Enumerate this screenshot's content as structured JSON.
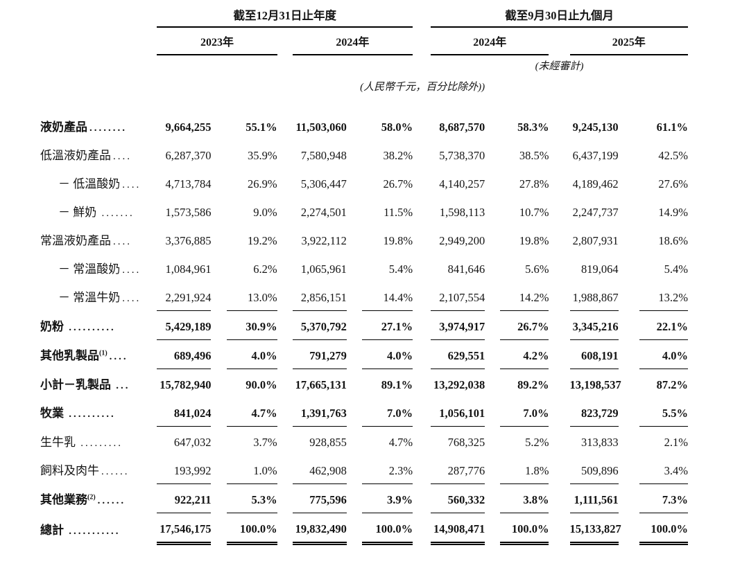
{
  "table": {
    "col_groups": [
      {
        "title": "截至12月31日止年度",
        "years": [
          "2023年",
          "2024年"
        ]
      },
      {
        "title": "截至9月30日止九個月",
        "years": [
          "2024年",
          "2025年"
        ]
      }
    ],
    "unaudited_note": "(未經審計)",
    "units_note": "(人民幣千元，百分比除外))",
    "rows": [
      {
        "name": "液奶產品",
        "sup": "",
        "dots": "........",
        "bold": true,
        "indent": false,
        "rule": "none",
        "values": [
          "9,664,255",
          "55.1%",
          "11,503,060",
          "58.0%",
          "8,687,570",
          "58.3%",
          "9,245,130",
          "61.1%"
        ]
      },
      {
        "name": "低溫液奶產品",
        "sup": "",
        "dots": "....",
        "bold": false,
        "indent": false,
        "rule": "none",
        "values": [
          "6,287,370",
          "35.9%",
          "7,580,948",
          "38.2%",
          "5,738,370",
          "38.5%",
          "6,437,199",
          "42.5%"
        ]
      },
      {
        "name": "－ 低溫酸奶",
        "sup": "",
        "dots": "....",
        "bold": false,
        "indent": true,
        "rule": "none",
        "values": [
          "4,713,784",
          "26.9%",
          "5,306,447",
          "26.7%",
          "4,140,257",
          "27.8%",
          "4,189,462",
          "27.6%"
        ]
      },
      {
        "name": "－ 鮮奶 ",
        "sup": "",
        "dots": ".......",
        "bold": false,
        "indent": true,
        "rule": "none",
        "values": [
          "1,573,586",
          "9.0%",
          "2,274,501",
          "11.5%",
          "1,598,113",
          "10.7%",
          "2,247,737",
          "14.9%"
        ]
      },
      {
        "name": "常溫液奶產品",
        "sup": "",
        "dots": "....",
        "bold": false,
        "indent": false,
        "rule": "none",
        "values": [
          "3,376,885",
          "19.2%",
          "3,922,112",
          "19.8%",
          "2,949,200",
          "19.8%",
          "2,807,931",
          "18.6%"
        ]
      },
      {
        "name": "－ 常溫酸奶",
        "sup": "",
        "dots": "....",
        "bold": false,
        "indent": true,
        "rule": "none",
        "values": [
          "1,084,961",
          "6.2%",
          "1,065,961",
          "5.4%",
          "841,646",
          "5.6%",
          "819,064",
          "5.4%"
        ]
      },
      {
        "name": "－ 常溫牛奶",
        "sup": "",
        "dots": "....",
        "bold": false,
        "indent": true,
        "rule": "single",
        "values": [
          "2,291,924",
          "13.0%",
          "2,856,151",
          "14.4%",
          "2,107,554",
          "14.2%",
          "1,988,867",
          "13.2%"
        ]
      },
      {
        "name": "奶粉 ",
        "sup": "",
        "dots": "..........",
        "bold": true,
        "indent": false,
        "rule": "single",
        "values": [
          "5,429,189",
          "30.9%",
          "5,370,792",
          "27.1%",
          "3,974,917",
          "26.7%",
          "3,345,216",
          "22.1%"
        ]
      },
      {
        "name": "其他乳製品",
        "sup": "(1)",
        "dots": "....",
        "bold": true,
        "indent": false,
        "rule": "single",
        "values": [
          "689,496",
          "4.0%",
          "791,279",
          "4.0%",
          "629,551",
          "4.2%",
          "608,191",
          "4.0%"
        ]
      },
      {
        "name": "小計－乳製品 ",
        "sup": "",
        "dots": "...",
        "bold": true,
        "indent": false,
        "rule": "none",
        "values": [
          "15,782,940",
          "90.0%",
          "17,665,131",
          "89.1%",
          "13,292,038",
          "89.2%",
          "13,198,537",
          "87.2%"
        ]
      },
      {
        "name": "牧業 ",
        "sup": "",
        "dots": "..........",
        "bold": true,
        "indent": false,
        "rule": "single",
        "values": [
          "841,024",
          "4.7%",
          "1,391,763",
          "7.0%",
          "1,056,101",
          "7.0%",
          "823,729",
          "5.5%"
        ]
      },
      {
        "name": "生牛乳 ",
        "sup": "",
        "dots": ".........",
        "bold": false,
        "indent": false,
        "rule": "none",
        "values": [
          "647,032",
          "3.7%",
          "928,855",
          "4.7%",
          "768,325",
          "5.2%",
          "313,833",
          "2.1%"
        ]
      },
      {
        "name": "飼料及肉牛",
        "sup": "",
        "dots": "......",
        "bold": false,
        "indent": false,
        "rule": "single",
        "values": [
          "193,992",
          "1.0%",
          "462,908",
          "2.3%",
          "287,776",
          "1.8%",
          "509,896",
          "3.4%"
        ]
      },
      {
        "name": "其他業務",
        "sup": "(2)",
        "dots": "......",
        "bold": true,
        "indent": false,
        "rule": "single",
        "values": [
          "922,211",
          "5.3%",
          "775,596",
          "3.9%",
          "560,332",
          "3.8%",
          "1,111,561",
          "7.3%"
        ]
      },
      {
        "name": "總計 ",
        "sup": "",
        "dots": "...........",
        "bold": true,
        "indent": false,
        "rule": "double",
        "values": [
          "17,546,175",
          "100.0%",
          "19,832,490",
          "100.0%",
          "14,908,471",
          "100.0%",
          "15,133,827",
          "100.0%"
        ]
      }
    ]
  }
}
